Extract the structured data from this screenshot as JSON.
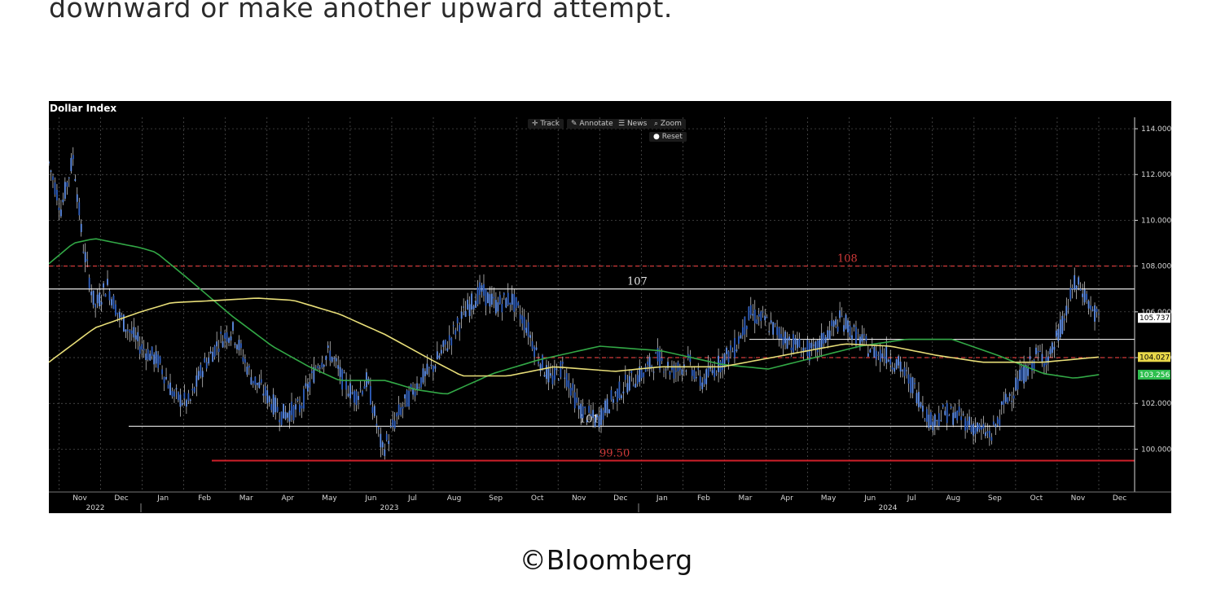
{
  "article": {
    "lead_text": "downward or make another upward attempt.",
    "credit": "©Bloomberg"
  },
  "toolbar": {
    "track_label": "Track",
    "annotate_label": "Annotate",
    "news_label": "News",
    "zoom_label": "Zoom",
    "reset_label": "Reset"
  },
  "chart_data": {
    "type": "candlestick",
    "title": "Dollar Index",
    "ylim": [
      98.2,
      114.5
    ],
    "y_ticks": [
      "114.000",
      "112.000",
      "110.000",
      "108.000",
      "106.000",
      "104.000",
      "102.000",
      "100.000"
    ],
    "x_months": [
      "Nov",
      "Dec",
      "Jan",
      "Feb",
      "Mar",
      "Apr",
      "May",
      "Jun",
      "Jul",
      "Aug",
      "Sep",
      "Oct",
      "Nov",
      "Dec",
      "Jan",
      "Feb",
      "Mar",
      "Apr",
      "May",
      "Jun",
      "Jul",
      "Aug",
      "Sep",
      "Oct",
      "Nov",
      "Dec"
    ],
    "x_years": [
      "2022",
      "2023",
      "2024"
    ],
    "price_path": [
      {
        "t": 0,
        "v": 112.5
      },
      {
        "t": 0.4,
        "v": 110.5
      },
      {
        "t": 0.8,
        "v": 112.8
      },
      {
        "t": 1.1,
        "v": 109.0
      },
      {
        "t": 1.5,
        "v": 106.2
      },
      {
        "t": 1.9,
        "v": 107.2
      },
      {
        "t": 2.3,
        "v": 105.8
      },
      {
        "t": 3.0,
        "v": 104.5
      },
      {
        "t": 3.6,
        "v": 103.8
      },
      {
        "t": 4.1,
        "v": 102.3
      },
      {
        "t": 4.6,
        "v": 102.0
      },
      {
        "t": 5.0,
        "v": 103.5
      },
      {
        "t": 5.6,
        "v": 104.8
      },
      {
        "t": 6.0,
        "v": 105.2
      },
      {
        "t": 6.6,
        "v": 103.2
      },
      {
        "t": 7.2,
        "v": 102.2
      },
      {
        "t": 7.6,
        "v": 101.5
      },
      {
        "t": 8.2,
        "v": 101.8
      },
      {
        "t": 8.8,
        "v": 103.8
      },
      {
        "t": 9.2,
        "v": 104.2
      },
      {
        "t": 9.6,
        "v": 103.0
      },
      {
        "t": 10.0,
        "v": 102.3
      },
      {
        "t": 10.4,
        "v": 103.0
      },
      {
        "t": 10.9,
        "v": 99.9
      },
      {
        "t": 11.4,
        "v": 101.5
      },
      {
        "t": 12.0,
        "v": 102.8
      },
      {
        "t": 12.5,
        "v": 103.5
      },
      {
        "t": 13.1,
        "v": 104.8
      },
      {
        "t": 13.6,
        "v": 106.0
      },
      {
        "t": 14.1,
        "v": 106.9
      },
      {
        "t": 14.6,
        "v": 106.3
      },
      {
        "t": 15.1,
        "v": 106.6
      },
      {
        "t": 15.6,
        "v": 105.4
      },
      {
        "t": 16.0,
        "v": 104.0
      },
      {
        "t": 16.4,
        "v": 103.0
      },
      {
        "t": 16.8,
        "v": 103.6
      },
      {
        "t": 17.3,
        "v": 101.8
      },
      {
        "t": 17.9,
        "v": 101.2
      },
      {
        "t": 18.4,
        "v": 102.2
      },
      {
        "t": 18.9,
        "v": 102.9
      },
      {
        "t": 19.4,
        "v": 103.3
      },
      {
        "t": 19.9,
        "v": 104.0
      },
      {
        "t": 20.4,
        "v": 103.4
      },
      {
        "t": 20.9,
        "v": 103.8
      },
      {
        "t": 21.3,
        "v": 102.9
      },
      {
        "t": 21.8,
        "v": 103.6
      },
      {
        "t": 22.4,
        "v": 104.4
      },
      {
        "t": 22.9,
        "v": 105.9
      },
      {
        "t": 23.4,
        "v": 105.6
      },
      {
        "t": 23.9,
        "v": 105.0
      },
      {
        "t": 24.5,
        "v": 104.5
      },
      {
        "t": 25.0,
        "v": 104.2
      },
      {
        "t": 25.4,
        "v": 105.0
      },
      {
        "t": 25.9,
        "v": 105.7
      },
      {
        "t": 26.4,
        "v": 104.9
      },
      {
        "t": 26.9,
        "v": 104.3
      },
      {
        "t": 27.4,
        "v": 104.1
      },
      {
        "t": 27.8,
        "v": 103.6
      },
      {
        "t": 28.3,
        "v": 102.6
      },
      {
        "t": 28.8,
        "v": 101.2
      },
      {
        "t": 29.3,
        "v": 101.6
      },
      {
        "t": 29.8,
        "v": 101.4
      },
      {
        "t": 30.3,
        "v": 100.9
      },
      {
        "t": 30.8,
        "v": 100.6
      },
      {
        "t": 31.3,
        "v": 102.2
      },
      {
        "t": 31.8,
        "v": 103.2
      },
      {
        "t": 32.3,
        "v": 104.1
      },
      {
        "t": 32.7,
        "v": 104.0
      },
      {
        "t": 33.2,
        "v": 105.8
      },
      {
        "t": 33.5,
        "v": 107.2
      },
      {
        "t": 33.8,
        "v": 106.9
      },
      {
        "t": 34.1,
        "v": 106.0
      },
      {
        "t": 34.3,
        "v": 105.737
      }
    ],
    "moving_average_yellow": [
      {
        "t": 0,
        "v": 103.8
      },
      {
        "t": 1.5,
        "v": 105.3
      },
      {
        "t": 3.0,
        "v": 106.0
      },
      {
        "t": 4.0,
        "v": 106.4
      },
      {
        "t": 5.5,
        "v": 106.5
      },
      {
        "t": 6.8,
        "v": 106.6
      },
      {
        "t": 8.0,
        "v": 106.5
      },
      {
        "t": 9.5,
        "v": 105.9
      },
      {
        "t": 11.0,
        "v": 105.0
      },
      {
        "t": 12.5,
        "v": 103.9
      },
      {
        "t": 13.5,
        "v": 103.2
      },
      {
        "t": 15.0,
        "v": 103.2
      },
      {
        "t": 16.5,
        "v": 103.6
      },
      {
        "t": 18.5,
        "v": 103.4
      },
      {
        "t": 20.0,
        "v": 103.6
      },
      {
        "t": 22.0,
        "v": 103.6
      },
      {
        "t": 24.0,
        "v": 104.1
      },
      {
        "t": 26.0,
        "v": 104.6
      },
      {
        "t": 27.5,
        "v": 104.5
      },
      {
        "t": 29.0,
        "v": 104.1
      },
      {
        "t": 30.5,
        "v": 103.8
      },
      {
        "t": 32.5,
        "v": 103.8
      },
      {
        "t": 34.3,
        "v": 104.027
      }
    ],
    "moving_average_green": [
      {
        "t": 0,
        "v": 108.1
      },
      {
        "t": 0.8,
        "v": 109.0
      },
      {
        "t": 1.5,
        "v": 109.2
      },
      {
        "t": 3.0,
        "v": 108.8
      },
      {
        "t": 3.5,
        "v": 108.6
      },
      {
        "t": 4.5,
        "v": 107.5
      },
      {
        "t": 6.0,
        "v": 105.8
      },
      {
        "t": 7.3,
        "v": 104.5
      },
      {
        "t": 8.5,
        "v": 103.6
      },
      {
        "t": 9.5,
        "v": 103.0
      },
      {
        "t": 11.0,
        "v": 103.0
      },
      {
        "t": 12.0,
        "v": 102.6
      },
      {
        "t": 13.0,
        "v": 102.4
      },
      {
        "t": 14.5,
        "v": 103.3
      },
      {
        "t": 16.0,
        "v": 103.9
      },
      {
        "t": 18.0,
        "v": 104.5
      },
      {
        "t": 20.0,
        "v": 104.3
      },
      {
        "t": 22.0,
        "v": 103.7
      },
      {
        "t": 23.5,
        "v": 103.5
      },
      {
        "t": 25.0,
        "v": 104.0
      },
      {
        "t": 26.5,
        "v": 104.5
      },
      {
        "t": 28.0,
        "v": 104.8
      },
      {
        "t": 29.5,
        "v": 104.8
      },
      {
        "t": 31.0,
        "v": 104.1
      },
      {
        "t": 32.5,
        "v": 103.3
      },
      {
        "t": 33.5,
        "v": 103.1
      },
      {
        "t": 34.3,
        "v": 103.256
      }
    ],
    "horizontal_levels": [
      {
        "label": "108",
        "value": 108.0,
        "style": "dashed",
        "color": "#d23a3a"
      },
      {
        "label": "107",
        "value": 107.0,
        "style": "solid",
        "color": "#e6e6e6"
      },
      {
        "label": "",
        "value": 104.8,
        "style": "solid",
        "color": "#e6e6e6"
      },
      {
        "label": "",
        "value": 104.0,
        "style": "dashed",
        "color": "#d23a3a"
      },
      {
        "label": "101",
        "value": 101.0,
        "style": "solid",
        "color": "#e6e6e6"
      },
      {
        "label": "99.50",
        "value": 99.5,
        "style": "solid",
        "color": "#d0202a"
      }
    ],
    "last_values": [
      {
        "label": "105.737",
        "value": 105.737,
        "bg": "#ffffff",
        "fg": "#000000"
      },
      {
        "label": "104.027",
        "value": 104.027,
        "bg": "#e8d84a",
        "fg": "#000000"
      },
      {
        "label": "103.256",
        "value": 103.256,
        "bg": "#2fbf4f",
        "fg": "#ffffff"
      }
    ],
    "colors": {
      "background": "#000000",
      "candles": "#5f8fe8",
      "yellow_line": "#e8de78",
      "green_line": "#32a846",
      "grid": "#5a5a5a",
      "axis_text": "#d8d8d8"
    },
    "grid": true
  }
}
